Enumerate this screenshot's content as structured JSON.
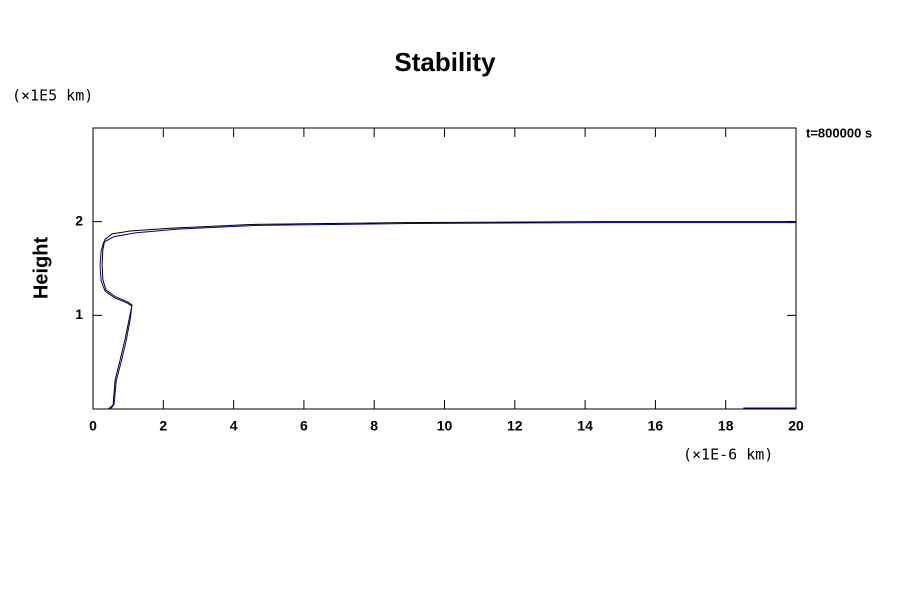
{
  "chart_data": {
    "type": "line",
    "title": "Stability",
    "y_label": "Height",
    "y_unit": "(×1E5 km)",
    "x_unit": "(×1E-6 km)",
    "annotation": "t=800000 s",
    "xlim": [
      0,
      20
    ],
    "xticks": [
      0,
      2,
      4,
      6,
      8,
      10,
      12,
      14,
      16,
      18,
      20
    ],
    "ylim": [
      0,
      3
    ],
    "yticks": [
      1,
      2
    ],
    "series": [
      {
        "color": "#000000",
        "x": [
          0.43,
          0.57,
          0.63,
          0.77,
          0.91,
          1.05,
          1.11,
          1.0,
          0.63,
          0.37,
          0.28,
          0.26,
          0.28,
          0.34,
          0.54,
          1.05,
          2.19,
          4.47,
          8.73,
          14.42,
          20
        ],
        "y": [
          0,
          0.04,
          0.31,
          0.52,
          0.74,
          1.0,
          1.11,
          1.14,
          1.2,
          1.27,
          1.38,
          1.54,
          1.7,
          1.81,
          1.87,
          1.9,
          1.93,
          1.97,
          1.99,
          2.0,
          2.0
        ]
      },
      {
        "color": "#00008b",
        "x": [
          0.5,
          0.6,
          0.66,
          0.8,
          0.94,
          1.07,
          1.1,
          0.98,
          0.6,
          0.34,
          0.23,
          0.2,
          0.23,
          0.3,
          0.6,
          1.2,
          2.4,
          4.7,
          9.0,
          14.5,
          20,
          null,
          18.5,
          20
        ],
        "y": [
          0,
          0.05,
          0.3,
          0.5,
          0.72,
          0.98,
          1.1,
          1.13,
          1.19,
          1.26,
          1.37,
          1.53,
          1.68,
          1.78,
          1.84,
          1.88,
          1.92,
          1.96,
          1.98,
          1.99,
          1.99,
          null,
          0.01,
          0.01
        ]
      }
    ]
  }
}
